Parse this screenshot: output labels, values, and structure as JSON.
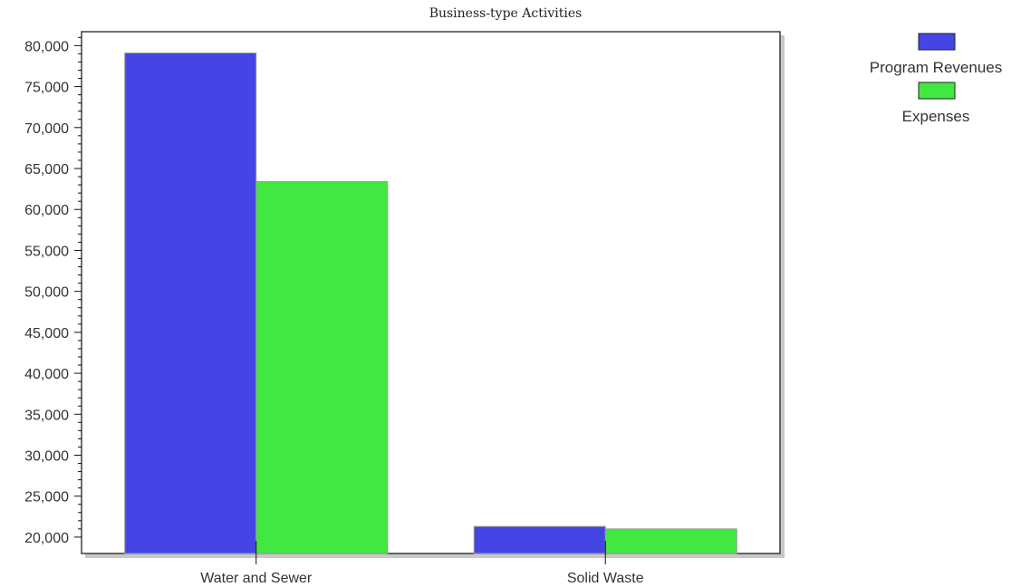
{
  "chart_data": {
    "type": "bar",
    "title": "Business-type Activities",
    "categories": [
      "Water and Sewer",
      "Solid Waste"
    ],
    "series": [
      {
        "name": "Program Revenues",
        "color": "#4545e6",
        "values": [
          79100,
          21300
        ]
      },
      {
        "name": "Expenses",
        "color": "#42e842",
        "values": [
          63400,
          21000
        ]
      }
    ],
    "xlabel": "",
    "ylabel": "",
    "ylim": [
      18000,
      81700
    ],
    "yticks": [
      20000,
      25000,
      30000,
      35000,
      40000,
      45000,
      50000,
      55000,
      60000,
      65000,
      70000,
      75000,
      80000
    ],
    "ytick_labels": [
      "20,000",
      "25,000",
      "30,000",
      "35,000",
      "40,000",
      "45,000",
      "50,000",
      "55,000",
      "60,000",
      "65,000",
      "70,000",
      "75,000",
      "80,000"
    ],
    "grid": false,
    "legend_position": "top-right"
  }
}
